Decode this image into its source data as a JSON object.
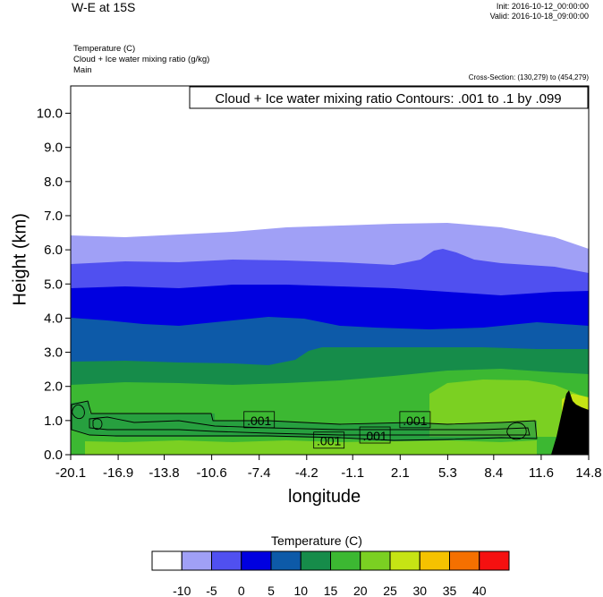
{
  "header": {
    "title": "W-E at 15S",
    "init": "Init: 2016-10-12_00:00:00",
    "valid": "Valid: 2016-10-18_09:00:00",
    "sub1": "Temperature   (C)",
    "sub2": "Cloud + Ice water mixing ratio   (g/kg)",
    "sub3": "Main",
    "cross_section": "Cross-Section: (130,279) to (454,279)"
  },
  "chart_data": {
    "type": "heatmap",
    "title": "Cloud + Ice water mixing ratio Contours: .001 to .1 by .099",
    "xlabel": "longitude",
    "ylabel": "Height (km)",
    "x_ticks": [
      "-20.1",
      "-16.9",
      "-13.8",
      "-10.6",
      "-7.4",
      "-4.2",
      "-1.1",
      "2.1",
      "5.3",
      "8.4",
      "11.6",
      "14.8"
    ],
    "y_ticks": [
      "0.0",
      "1.0",
      "2.0",
      "3.0",
      "4.0",
      "5.0",
      "6.0",
      "7.0",
      "8.0",
      "9.0",
      "10.0"
    ],
    "xlim": [
      -20.1,
      14.8
    ],
    "ylim": [
      0.0,
      10.8
    ],
    "contour_labels": [
      {
        "text": ".001",
        "x": -7.4,
        "y": 1.0
      },
      {
        "text": ".001",
        "x": -2.7,
        "y": 0.4
      },
      {
        "text": ".001",
        "x": 0.4,
        "y": 0.55
      },
      {
        "text": ".001",
        "x": 3.1,
        "y": 1.0
      }
    ],
    "colorbar": {
      "title": "Temperature  (C)",
      "labels": [
        "-10",
        "-5",
        "0",
        "5",
        "10",
        "15",
        "20",
        "25",
        "30",
        "35",
        "40"
      ],
      "colors": [
        "#ffffff",
        "#a0a0f6",
        "#5050f0",
        "#0000e0",
        "#0d5aa8",
        "#168c4a",
        "#3cb832",
        "#7bd022",
        "#c6e414",
        "#f5c200",
        "#f57000",
        "#f51010"
      ]
    },
    "terrain_color": "#000000"
  }
}
